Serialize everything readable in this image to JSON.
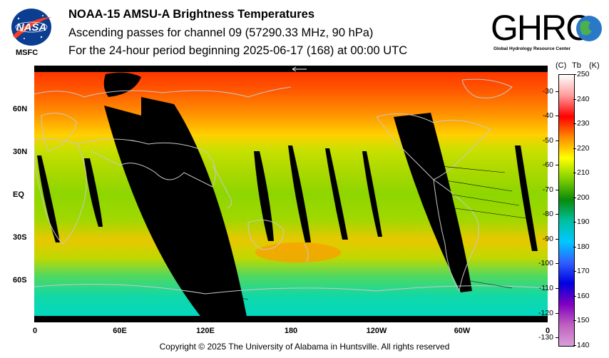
{
  "header": {
    "title": "NOAA-15 AMSU-A Brightness Temperatures",
    "subtitle": "Ascending passes for channel 09 (57290.33 MHz, 90 hPa)",
    "period": "For the 24-hour period beginning 2025-06-17 (168) at 00:00 UTC"
  },
  "logos": {
    "nasa_text": "NASA",
    "nasa_caption": "MSFC",
    "ghrc_text": "GHRC",
    "ghrc_caption": "Global Hydrology Resource Center"
  },
  "map": {
    "lat_labels": [
      "60N",
      "30N",
      "EQ",
      "30S",
      "60S"
    ],
    "lon_labels": [
      "0",
      "60E",
      "120E",
      "180",
      "120W",
      "60W",
      "0"
    ],
    "colors": {
      "polar_north": "#ff2a00",
      "mid_north": "#ffa000",
      "band_30n": "#c8e000",
      "tropics": "#8ed600",
      "south_mid": "#f0c000",
      "south_60": "#2ad86e",
      "south_polar": "#00d8c8",
      "no_data": "#000000",
      "coast": "#c8c8c8"
    }
  },
  "colorbar": {
    "unit_c": "(C)",
    "unit_tb": "Tb",
    "unit_k": "(K)",
    "celsius_ticks": [
      "-30",
      "-40",
      "-50",
      "-60",
      "-70",
      "-80",
      "-90",
      "-100",
      "-110",
      "-120",
      "-130"
    ],
    "kelvin_ticks": [
      "250",
      "240",
      "230",
      "220",
      "210",
      "200",
      "190",
      "180",
      "170",
      "160",
      "150",
      "140"
    ],
    "range_k": [
      140,
      250
    ],
    "stops": [
      "#ffffff",
      "#ff9a9a",
      "#ff0000",
      "#ff8c00",
      "#ffff00",
      "#7fcf00",
      "#0a8a0a",
      "#00c0a0",
      "#00c8ff",
      "#3060ff",
      "#0000e0",
      "#8000c0",
      "#c060c0",
      "#d8a0d8"
    ]
  },
  "footer": {
    "copyright": "Copyright © 2025 The University of Alabama in Huntsville.  All rights reserved"
  }
}
